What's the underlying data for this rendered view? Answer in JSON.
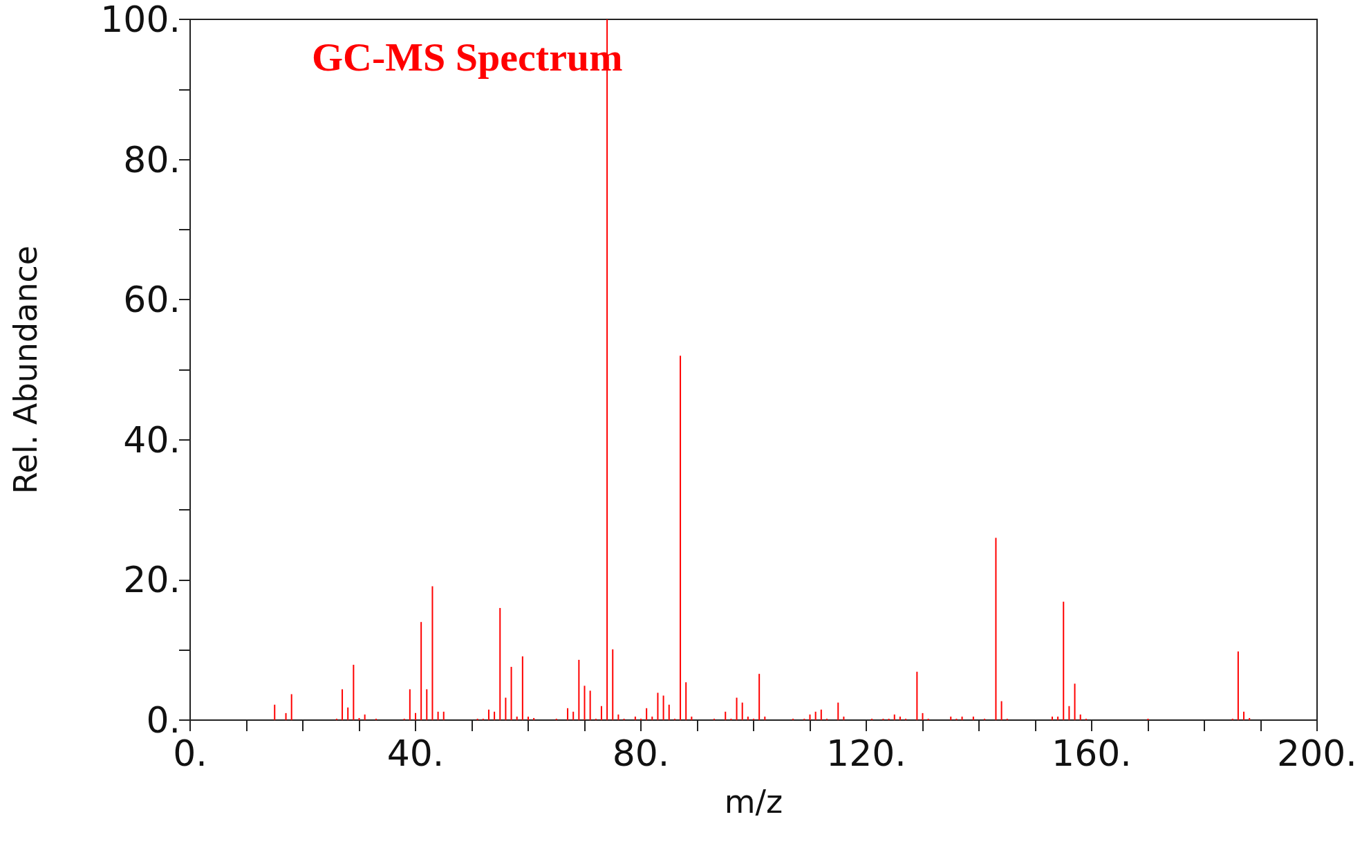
{
  "chart_data": {
    "type": "bar",
    "title": "GC-MS Spectrum",
    "xlabel": "m/z",
    "ylabel": "Rel. Abundance",
    "x": [
      15,
      17,
      18,
      26,
      27,
      28,
      29,
      30,
      31,
      33,
      38,
      39,
      40,
      41,
      42,
      43,
      44,
      45,
      51,
      52,
      53,
      54,
      55,
      56,
      57,
      58,
      59,
      60,
      61,
      65,
      67,
      68,
      69,
      70,
      71,
      72,
      73,
      74,
      75,
      76,
      77,
      79,
      80,
      81,
      82,
      83,
      84,
      85,
      86,
      87,
      88,
      89,
      93,
      95,
      96,
      97,
      98,
      99,
      100,
      101,
      102,
      107,
      109,
      110,
      111,
      112,
      113,
      115,
      116,
      121,
      123,
      124,
      125,
      126,
      127,
      129,
      130,
      131,
      135,
      136,
      137,
      139,
      141,
      143,
      144,
      145,
      153,
      154,
      155,
      156,
      157,
      158,
      159,
      170,
      185,
      186,
      187,
      188
    ],
    "values": [
      2.2,
      1.0,
      3.7,
      0.2,
      4.4,
      1.8,
      7.9,
      0.3,
      0.8,
      0.2,
      0.2,
      4.4,
      1.0,
      14.0,
      4.4,
      19.1,
      1.2,
      1.2,
      0.2,
      0.2,
      1.5,
      1.2,
      16.0,
      3.2,
      7.6,
      0.5,
      9.1,
      0.5,
      0.3,
      0.2,
      1.7,
      1.2,
      8.6,
      4.9,
      4.2,
      0.2,
      2.0,
      100,
      10.1,
      0.8,
      0.2,
      0.5,
      0.2,
      1.7,
      0.5,
      3.9,
      3.5,
      2.2,
      0.2,
      52,
      5.4,
      0.5,
      0.2,
      1.2,
      0.2,
      3.2,
      2.5,
      0.5,
      0.2,
      6.6,
      0.5,
      0.2,
      0.2,
      0.8,
      1.2,
      1.5,
      0.2,
      2.5,
      0.5,
      0.2,
      0.2,
      0.2,
      0.8,
      0.5,
      0.2,
      6.9,
      1.0,
      0.2,
      0.5,
      0.2,
      0.5,
      0.5,
      0.2,
      26,
      2.7,
      0.2,
      0.5,
      0.5,
      16.9,
      2.0,
      5.2,
      0.8,
      0.2,
      0.2,
      0.2,
      9.8,
      1.2,
      0.3
    ],
    "color": "#ff0000",
    "xlim": [
      0,
      200
    ],
    "xticks": [
      {
        "value": 0,
        "label": "0."
      },
      {
        "value": 10,
        "label": null
      },
      {
        "value": 20,
        "label": null
      },
      {
        "value": 30,
        "label": null
      },
      {
        "value": 40,
        "label": "40."
      },
      {
        "value": 50,
        "label": null
      },
      {
        "value": 60,
        "label": null
      },
      {
        "value": 70,
        "label": null
      },
      {
        "value": 80,
        "label": "80."
      },
      {
        "value": 90,
        "label": null
      },
      {
        "value": 100,
        "label": null
      },
      {
        "value": 110,
        "label": null
      },
      {
        "value": 120,
        "label": "120."
      },
      {
        "value": 130,
        "label": null
      },
      {
        "value": 140,
        "label": null
      },
      {
        "value": 150,
        "label": null
      },
      {
        "value": 160,
        "label": "160."
      },
      {
        "value": 170,
        "label": null
      },
      {
        "value": 180,
        "label": null
      },
      {
        "value": 190,
        "label": null
      },
      {
        "value": 200,
        "label": "200."
      }
    ],
    "ylim": [
      0,
      100
    ],
    "yticks": [
      {
        "value": 0,
        "label": "0."
      },
      {
        "value": 10,
        "label": null
      },
      {
        "value": 20,
        "label": "20."
      },
      {
        "value": 30,
        "label": null
      },
      {
        "value": 40,
        "label": "40."
      },
      {
        "value": 50,
        "label": null
      },
      {
        "value": 60,
        "label": "60."
      },
      {
        "value": 70,
        "label": null
      },
      {
        "value": 80,
        "label": "80."
      },
      {
        "value": 90,
        "label": null
      },
      {
        "value": 100,
        "label": "100."
      }
    ],
    "tick_labels": "xy"
  }
}
